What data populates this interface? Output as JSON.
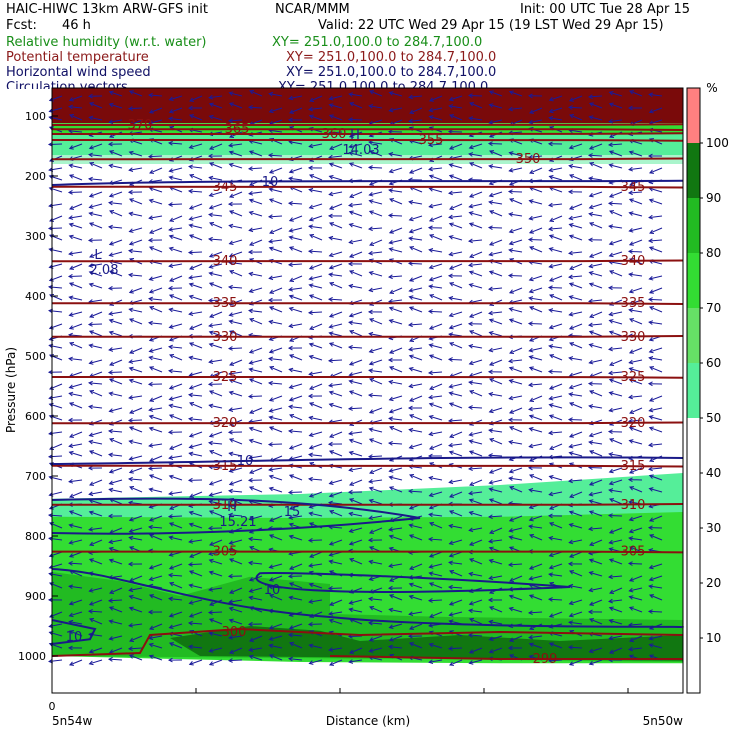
{
  "header": {
    "title_left": "HAIC-HIWC 13km ARW-GFS init",
    "org": "NCAR/MMM",
    "init": "Init: 00 UTC Tue 28 Apr 15",
    "fcst_label": "Fcst:",
    "fcst_value": "46 h",
    "valid": "Valid: 22 UTC Wed 29 Apr 15 (19 LST Wed 29 Apr 15)",
    "fields": [
      {
        "name": "Relative humidity (w.r.t. water)",
        "xy": "XY= 251.0,100.0 to 284.7,100.0",
        "color": "#1a8f1a"
      },
      {
        "name": "Potential temperature",
        "xy": "XY= 251.0,100.0 to 284.7,100.0",
        "color": "#8b1a1a"
      },
      {
        "name": "Horizontal wind speed",
        "xy": "XY= 251.0,100.0 to 284.7,100.0",
        "color": "#111166"
      },
      {
        "name": "Circulation vectors",
        "xy": "XY= 251.0,100.0 to 284.7,100.0",
        "color": "#111166"
      }
    ]
  },
  "chart_data": {
    "type": "heatmap",
    "ylabel": "Pressure (hPa)",
    "xlabel": "Distance (km)",
    "x_start_tick": "0",
    "x_left_label": "5n54w",
    "x_right_label": "5n50w",
    "yticks": [
      100,
      200,
      300,
      400,
      500,
      600,
      700,
      800,
      900,
      1000
    ],
    "ylim": [
      70,
      1050
    ],
    "colorbar": {
      "unit": "%",
      "ticks": [
        10,
        20,
        30,
        40,
        50,
        60,
        70,
        80,
        90,
        100
      ],
      "levels": [
        {
          "from": 0,
          "to": 50,
          "color": "#ffffff"
        },
        {
          "from": 50,
          "to": 60,
          "color": "#55ee99"
        },
        {
          "from": 60,
          "to": 70,
          "color": "#66e066"
        },
        {
          "from": 70,
          "to": 80,
          "color": "#33dd33"
        },
        {
          "from": 80,
          "to": 90,
          "color": "#22bb22"
        },
        {
          "from": 90,
          "to": 100,
          "color": "#117711"
        },
        {
          "from": 100,
          "to": 110,
          "color": "#ff8080"
        }
      ]
    },
    "theta_contours": [
      {
        "label": "370",
        "p": 115
      },
      {
        "label": "365",
        "p": 122
      },
      {
        "label": "360",
        "p": 130
      },
      {
        "label": "355",
        "p": 140
      },
      {
        "label": "350",
        "p": 172
      },
      {
        "label": "345",
        "p": 218
      },
      {
        "label": "340",
        "p": 342
      },
      {
        "label": "335",
        "p": 412
      },
      {
        "label": "330",
        "p": 468
      },
      {
        "label": "325",
        "p": 535
      },
      {
        "label": "320",
        "p": 612
      },
      {
        "label": "315",
        "p": 683
      },
      {
        "label": "310",
        "p": 748
      },
      {
        "label": "305",
        "p": 826
      },
      {
        "label": "300",
        "p": 958
      },
      {
        "label": "299",
        "p": 1005
      }
    ],
    "wind_contours": [
      {
        "label": "10",
        "p": 210
      },
      {
        "label": "10",
        "p": 675
      },
      {
        "label": "15",
        "p": 760
      },
      {
        "label": "10",
        "p": 885
      },
      {
        "label": "10",
        "p": 965
      }
    ],
    "extrema": [
      {
        "type": "H",
        "value": "14.03",
        "p": 145
      },
      {
        "type": "L",
        "value": "2.08",
        "p": 345
      },
      {
        "type": "H",
        "value": "15.21",
        "p": 765
      }
    ]
  }
}
